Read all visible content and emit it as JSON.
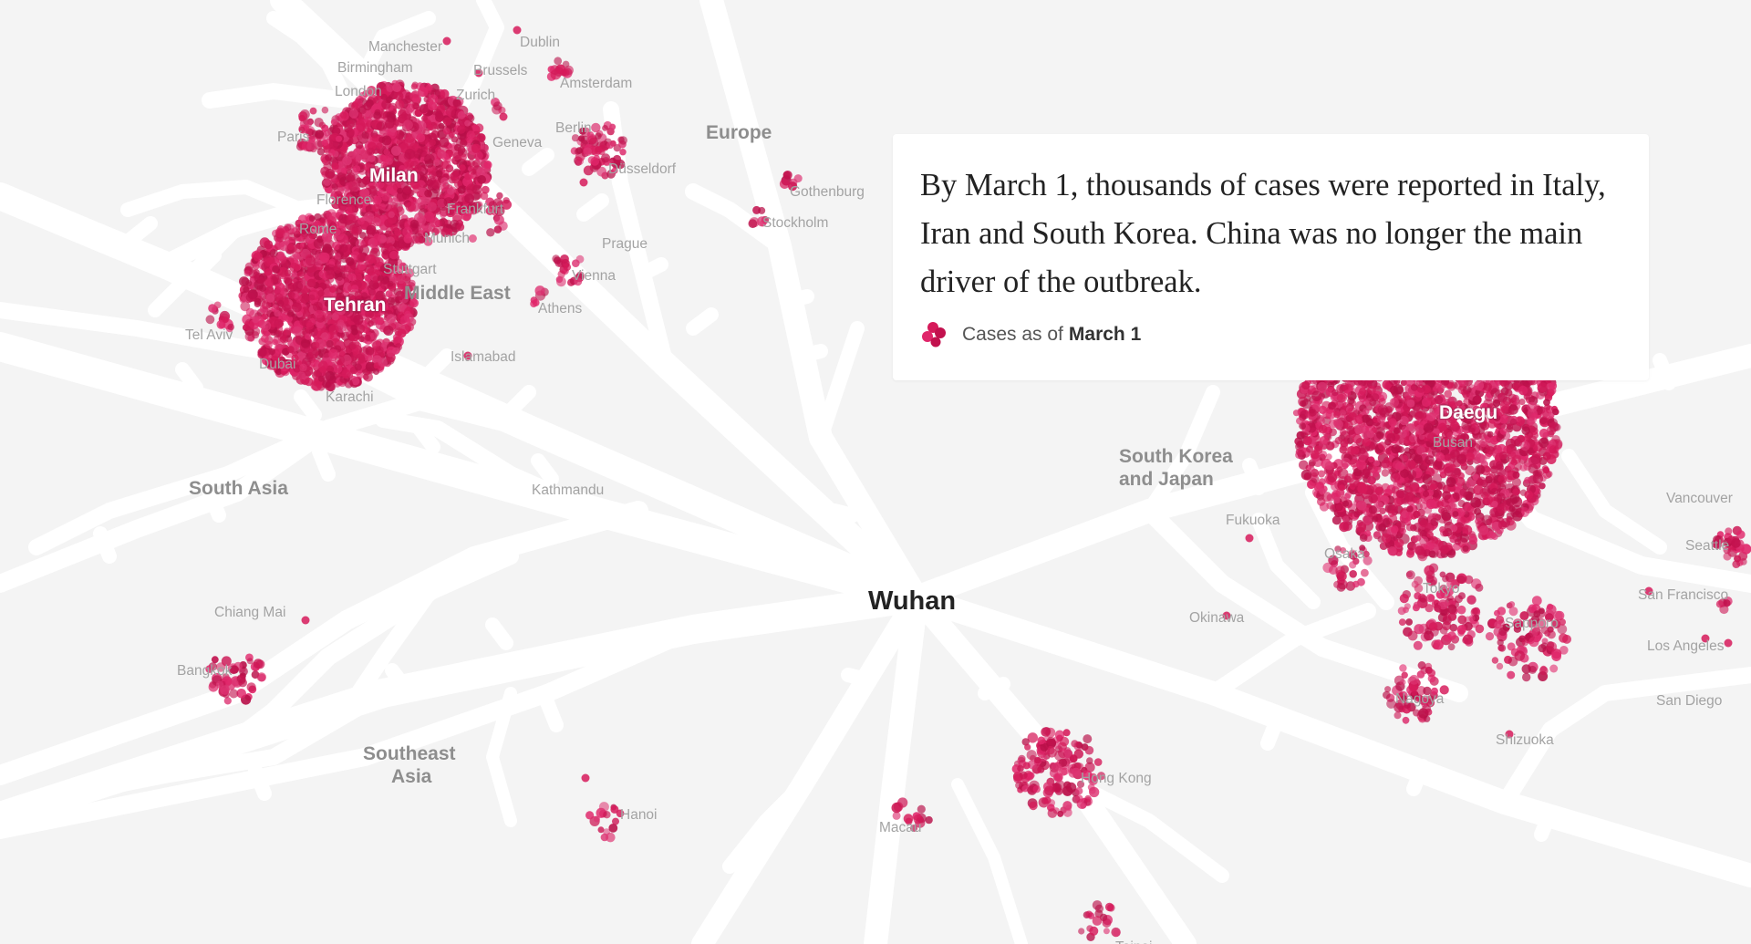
{
  "caption": {
    "text": "By March 1, thousands of cases were reported in Italy, Iran and South Korea. China was no longer the main driver of the outbreak.",
    "legend_prefix": "Cases as of",
    "legend_date": "March 1",
    "legend_icon": "case-cluster-icon"
  },
  "colors": {
    "background": "#f4f4f4",
    "roads": "#ffffff",
    "case_dot": "#d61a5a",
    "card": "#ffffff"
  },
  "hub": {
    "name": "Wuhan"
  },
  "regions": [
    {
      "key": "europe",
      "label": "Europe"
    },
    {
      "key": "middle-east",
      "label": "Middle East"
    },
    {
      "key": "south-asia",
      "label": "South Asia"
    },
    {
      "key": "southeast-asia",
      "label": "Southeast Asia"
    },
    {
      "key": "south-korea-japan",
      "label": "South Korea and Japan"
    }
  ],
  "cities": [
    {
      "key": "manchester",
      "name": "Manchester",
      "cases": "small"
    },
    {
      "key": "dublin",
      "name": "Dublin",
      "cases": "small"
    },
    {
      "key": "birmingham",
      "name": "Birmingham",
      "cases": "small"
    },
    {
      "key": "brussels",
      "name": "Brussels",
      "cases": "small"
    },
    {
      "key": "amsterdam",
      "name": "Amsterdam",
      "cases": "small"
    },
    {
      "key": "london",
      "name": "London",
      "cases": "small"
    },
    {
      "key": "zurich",
      "name": "Zurich",
      "cases": "small"
    },
    {
      "key": "paris",
      "name": "Paris",
      "cases": "medium"
    },
    {
      "key": "berlin",
      "name": "Berlin",
      "cases": "small"
    },
    {
      "key": "geneva",
      "name": "Geneva",
      "cases": "small"
    },
    {
      "key": "milan",
      "name": "Milan",
      "cases": "large"
    },
    {
      "key": "dusseldorf",
      "name": "Düsseldorf",
      "cases": "medium"
    },
    {
      "key": "gothenburg",
      "name": "Gothenburg",
      "cases": "small"
    },
    {
      "key": "florence",
      "name": "Florence",
      "cases": "small"
    },
    {
      "key": "frankfurt",
      "name": "Frankfurt",
      "cases": "small"
    },
    {
      "key": "stockholm",
      "name": "Stockholm",
      "cases": "small"
    },
    {
      "key": "rome",
      "name": "Rome",
      "cases": "small"
    },
    {
      "key": "munich",
      "name": "Munich",
      "cases": "small"
    },
    {
      "key": "prague",
      "name": "Prague",
      "cases": "small"
    },
    {
      "key": "stuttgart",
      "name": "Stuttgart",
      "cases": "small"
    },
    {
      "key": "vienna",
      "name": "Vienna",
      "cases": "small"
    },
    {
      "key": "tehran",
      "name": "Tehran",
      "cases": "large"
    },
    {
      "key": "athens",
      "name": "Athens",
      "cases": "small"
    },
    {
      "key": "tel-aviv",
      "name": "Tel Aviv",
      "cases": "small"
    },
    {
      "key": "dubai",
      "name": "Dubai",
      "cases": "small"
    },
    {
      "key": "islamabad",
      "name": "Islamabad",
      "cases": "small"
    },
    {
      "key": "karachi",
      "name": "Karachi",
      "cases": "small"
    },
    {
      "key": "kathmandu",
      "name": "Kathmandu",
      "cases": "small"
    },
    {
      "key": "chiang-mai",
      "name": "Chiang Mai",
      "cases": "small"
    },
    {
      "key": "bangkok",
      "name": "Bangkok",
      "cases": "medium"
    },
    {
      "key": "hanoi",
      "name": "Hanoi",
      "cases": "small"
    },
    {
      "key": "macau",
      "name": "Macau",
      "cases": "small"
    },
    {
      "key": "hong-kong",
      "name": "Hong Kong",
      "cases": "medium"
    },
    {
      "key": "daegu",
      "name": "Daegu",
      "cases": "large"
    },
    {
      "key": "busan",
      "name": "Busan",
      "cases": "small"
    },
    {
      "key": "fukuoka",
      "name": "Fukuoka",
      "cases": "small"
    },
    {
      "key": "osaka",
      "name": "Osaka",
      "cases": "small"
    },
    {
      "key": "tokyo",
      "name": "Tokyo",
      "cases": "medium"
    },
    {
      "key": "sapporo",
      "name": "Sapporo",
      "cases": "medium"
    },
    {
      "key": "okinawa",
      "name": "Okinawa",
      "cases": "small"
    },
    {
      "key": "nagoya",
      "name": "Nagoya",
      "cases": "medium"
    },
    {
      "key": "shizuoka",
      "name": "Shizuoka",
      "cases": "small"
    },
    {
      "key": "vancouver",
      "name": "Vancouver",
      "cases": "small"
    },
    {
      "key": "seattle",
      "name": "Seattle",
      "cases": "small"
    },
    {
      "key": "san-francisco",
      "name": "San Francisco",
      "cases": "small"
    },
    {
      "key": "los-angeles",
      "name": "Los Angeles",
      "cases": "small"
    },
    {
      "key": "san-diego",
      "name": "San Diego",
      "cases": "small"
    },
    {
      "key": "taipei",
      "name": "Taipei",
      "cases": "small"
    }
  ]
}
